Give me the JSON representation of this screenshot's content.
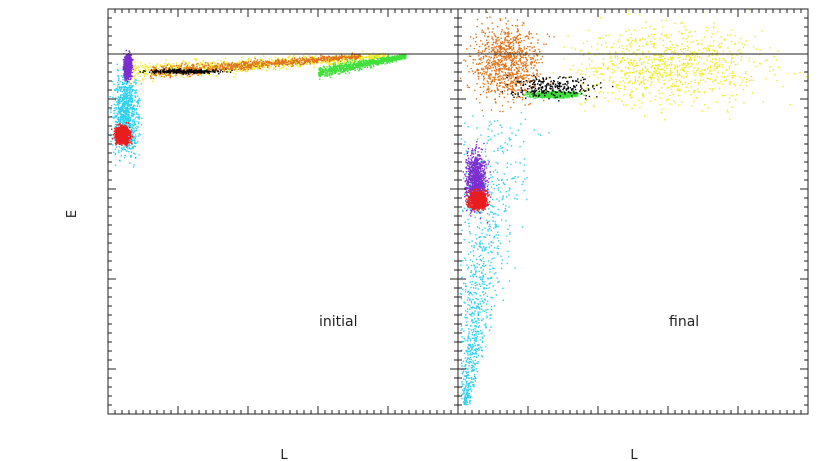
{
  "chart_data": [
    {
      "type": "scatter",
      "panel": "left",
      "annotation": "initial",
      "xlabel": "L",
      "ylabel": "E",
      "xlim": [
        0,
        1
      ],
      "ylim": [
        0,
        1
      ],
      "hline_y": 0.92,
      "grid": false,
      "series": [
        {
          "color": "#2fd0ef",
          "x_range": [
            0.0,
            0.1
          ],
          "y_range": [
            0.6,
            0.88
          ]
        },
        {
          "color": "#f2ea1d",
          "x_range": [
            0.05,
            0.8
          ],
          "y_range": [
            0.79,
            0.92
          ]
        },
        {
          "color": "#e0741a",
          "x_range": [
            0.12,
            0.72
          ],
          "y_range": [
            0.82,
            0.9
          ]
        },
        {
          "color": "#3fe03a",
          "x_range": [
            0.6,
            0.85
          ],
          "y_range": [
            0.86,
            0.9
          ]
        },
        {
          "color": "#000000",
          "x_range": [
            0.06,
            0.38
          ],
          "y_range": [
            0.84,
            0.855
          ]
        },
        {
          "color": "#7b2fd0",
          "x_range": [
            0.04,
            0.07
          ],
          "y_range": [
            0.82,
            0.9
          ]
        },
        {
          "color": "#e81e1e",
          "x_range": [
            0.01,
            0.07
          ],
          "y_range": [
            0.66,
            0.72
          ]
        }
      ]
    },
    {
      "type": "scatter",
      "panel": "right",
      "annotation": "final",
      "xlabel": "L",
      "ylabel": "",
      "xlim": [
        0,
        1
      ],
      "ylim": [
        0,
        1
      ],
      "hline_y": 0.92,
      "grid": false,
      "series": [
        {
          "color": "#2fd0ef",
          "x_range": [
            0.0,
            0.27
          ],
          "y_range": [
            0.02,
            0.75
          ]
        },
        {
          "color": "#f2ea1d",
          "x_range": [
            0.22,
            1.0
          ],
          "y_range": [
            0.72,
            1.0
          ]
        },
        {
          "color": "#e0741a",
          "x_range": [
            0.0,
            0.28
          ],
          "y_range": [
            0.74,
            1.0
          ]
        },
        {
          "color": "#3fe03a",
          "x_range": [
            0.18,
            0.36
          ],
          "y_range": [
            0.78,
            0.8
          ]
        },
        {
          "color": "#000000",
          "x_range": [
            0.08,
            0.45
          ],
          "y_range": [
            0.77,
            0.85
          ]
        },
        {
          "color": "#7b2fd0",
          "x_range": [
            0.01,
            0.09
          ],
          "y_range": [
            0.48,
            0.68
          ]
        },
        {
          "color": "#e81e1e",
          "x_range": [
            0.02,
            0.09
          ],
          "y_range": [
            0.5,
            0.56
          ]
        }
      ]
    }
  ]
}
